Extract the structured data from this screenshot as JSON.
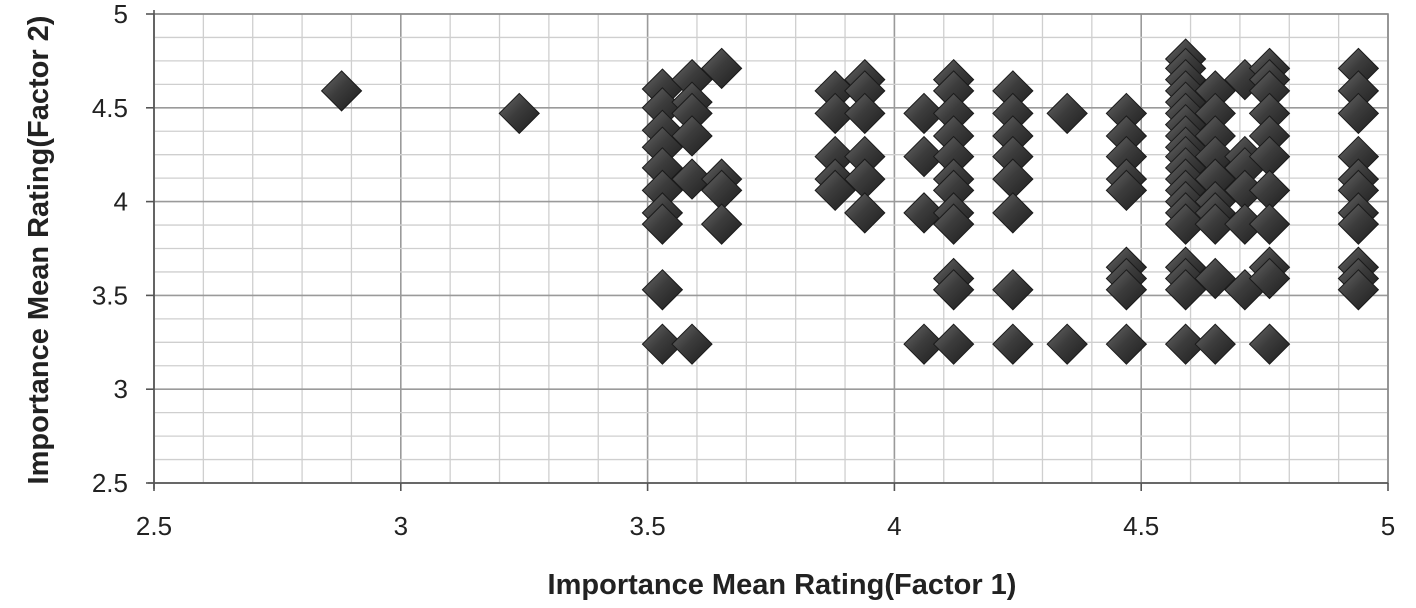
{
  "chart_data": {
    "type": "scatter",
    "title": "",
    "xlabel": "Importance Mean Rating(Factor 1)",
    "ylabel": "Importance Mean Rating(Factor 2)",
    "xlim": [
      2.5,
      5
    ],
    "ylim": [
      2.5,
      5
    ],
    "x_ticks": [
      "2.5",
      "3",
      "3.5",
      "4",
      "4.5",
      "5"
    ],
    "y_ticks": [
      "2.5",
      "3",
      "3.5",
      "4",
      "4.5",
      "5"
    ],
    "grid": true,
    "legend": "none",
    "marker": "diamond",
    "marker_color": "#3a3a3a",
    "points": [
      [
        2.88,
        4.59
      ],
      [
        3.24,
        4.47
      ],
      [
        3.53,
        4.6
      ],
      [
        3.53,
        4.5
      ],
      [
        3.53,
        4.38
      ],
      [
        3.53,
        4.29
      ],
      [
        3.53,
        4.18
      ],
      [
        3.53,
        4.06
      ],
      [
        3.53,
        3.94
      ],
      [
        3.53,
        3.88
      ],
      [
        3.53,
        3.53
      ],
      [
        3.53,
        3.24
      ],
      [
        3.59,
        4.65
      ],
      [
        3.59,
        4.53
      ],
      [
        3.59,
        4.47
      ],
      [
        3.59,
        4.35
      ],
      [
        3.59,
        4.12
      ],
      [
        3.59,
        3.24
      ],
      [
        3.65,
        4.71
      ],
      [
        3.65,
        4.12
      ],
      [
        3.65,
        4.06
      ],
      [
        3.65,
        3.88
      ],
      [
        3.88,
        4.59
      ],
      [
        3.88,
        4.47
      ],
      [
        3.88,
        4.24
      ],
      [
        3.88,
        4.12
      ],
      [
        3.88,
        4.06
      ],
      [
        3.94,
        4.65
      ],
      [
        3.94,
        4.59
      ],
      [
        3.94,
        4.47
      ],
      [
        3.94,
        4.24
      ],
      [
        3.94,
        4.12
      ],
      [
        3.94,
        3.94
      ],
      [
        4.06,
        4.47
      ],
      [
        4.06,
        4.24
      ],
      [
        4.06,
        3.94
      ],
      [
        4.06,
        3.24
      ],
      [
        4.12,
        4.65
      ],
      [
        4.12,
        4.59
      ],
      [
        4.12,
        4.47
      ],
      [
        4.12,
        4.35
      ],
      [
        4.12,
        4.24
      ],
      [
        4.12,
        4.12
      ],
      [
        4.12,
        4.06
      ],
      [
        4.12,
        3.94
      ],
      [
        4.12,
        3.88
      ],
      [
        4.12,
        3.59
      ],
      [
        4.12,
        3.53
      ],
      [
        4.12,
        3.24
      ],
      [
        4.24,
        4.59
      ],
      [
        4.24,
        4.47
      ],
      [
        4.24,
        4.35
      ],
      [
        4.24,
        4.24
      ],
      [
        4.24,
        4.12
      ],
      [
        4.24,
        3.94
      ],
      [
        4.24,
        3.53
      ],
      [
        4.24,
        3.24
      ],
      [
        4.35,
        4.47
      ],
      [
        4.35,
        3.24
      ],
      [
        4.47,
        4.47
      ],
      [
        4.47,
        4.35
      ],
      [
        4.47,
        4.24
      ],
      [
        4.47,
        4.12
      ],
      [
        4.47,
        4.06
      ],
      [
        4.47,
        3.65
      ],
      [
        4.47,
        3.59
      ],
      [
        4.47,
        3.53
      ],
      [
        4.47,
        3.24
      ],
      [
        4.59,
        4.76
      ],
      [
        4.59,
        4.71
      ],
      [
        4.59,
        4.65
      ],
      [
        4.59,
        4.59
      ],
      [
        4.59,
        4.53
      ],
      [
        4.59,
        4.47
      ],
      [
        4.59,
        4.41
      ],
      [
        4.59,
        4.35
      ],
      [
        4.59,
        4.29
      ],
      [
        4.59,
        4.24
      ],
      [
        4.59,
        4.18
      ],
      [
        4.59,
        4.12
      ],
      [
        4.59,
        4.06
      ],
      [
        4.59,
        4.0
      ],
      [
        4.59,
        3.94
      ],
      [
        4.59,
        3.88
      ],
      [
        4.59,
        3.65
      ],
      [
        4.59,
        3.59
      ],
      [
        4.59,
        3.53
      ],
      [
        4.59,
        3.24
      ],
      [
        4.65,
        4.59
      ],
      [
        4.65,
        4.47
      ],
      [
        4.65,
        4.35
      ],
      [
        4.65,
        4.24
      ],
      [
        4.65,
        4.12
      ],
      [
        4.65,
        4.0
      ],
      [
        4.65,
        3.94
      ],
      [
        4.65,
        3.88
      ],
      [
        4.65,
        3.59
      ],
      [
        4.65,
        3.24
      ],
      [
        4.71,
        4.65
      ],
      [
        4.71,
        4.24
      ],
      [
        4.71,
        4.18
      ],
      [
        4.71,
        4.06
      ],
      [
        4.71,
        3.88
      ],
      [
        4.71,
        3.53
      ],
      [
        4.76,
        4.71
      ],
      [
        4.76,
        4.65
      ],
      [
        4.76,
        4.59
      ],
      [
        4.76,
        4.47
      ],
      [
        4.76,
        4.35
      ],
      [
        4.76,
        4.24
      ],
      [
        4.76,
        4.06
      ],
      [
        4.76,
        3.88
      ],
      [
        4.76,
        3.65
      ],
      [
        4.76,
        3.59
      ],
      [
        4.76,
        3.24
      ],
      [
        4.94,
        4.71
      ],
      [
        4.94,
        4.59
      ],
      [
        4.94,
        4.47
      ],
      [
        4.94,
        4.24
      ],
      [
        4.94,
        4.12
      ],
      [
        4.94,
        4.06
      ],
      [
        4.94,
        3.94
      ],
      [
        4.94,
        3.88
      ],
      [
        4.94,
        3.65
      ],
      [
        4.94,
        3.59
      ],
      [
        4.94,
        3.53
      ]
    ]
  }
}
